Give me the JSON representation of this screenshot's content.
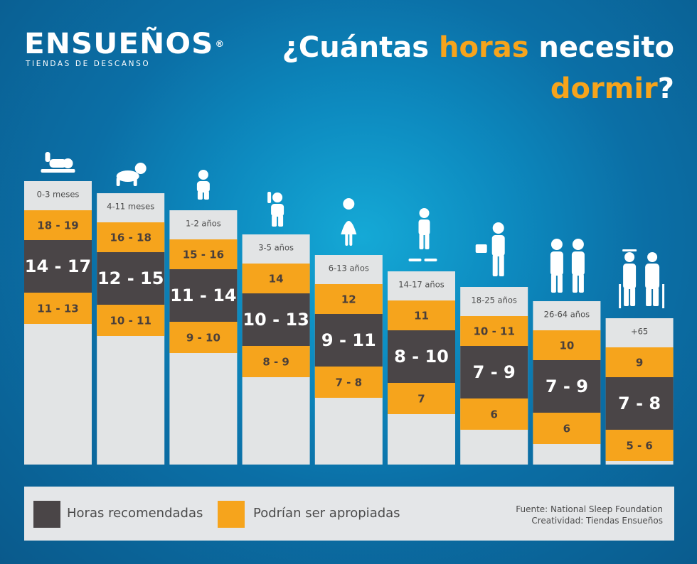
{
  "brand": {
    "name": "ENSUEÑOS",
    "registered": "®",
    "tagline": "TIENDAS DE DESCANSO"
  },
  "title": {
    "part1": "¿Cuántas ",
    "part2": "horas",
    "part3": " necesito",
    "part4": "dormir",
    "part5": "?"
  },
  "colors": {
    "recommended": "#4a4547",
    "appropriate": "#f6a41c",
    "bar": "#e2e4e5",
    "accent": "#f6a41c"
  },
  "chart_data": {
    "type": "bar",
    "categories": [
      "0-3 meses",
      "4-11 meses",
      "1-2 años",
      "3-5 años",
      "6-13 años",
      "14-17 años",
      "18-25 años",
      "26-64 años",
      "+65"
    ],
    "series": [
      {
        "name": "Podrían ser apropiadas",
        "values": [
          "18 - 19",
          "16 - 18",
          "15 - 16",
          "14",
          "12",
          "11",
          "10 - 11",
          "10",
          "9"
        ]
      },
      {
        "name": "Horas recomendadas",
        "values": [
          "14 - 17",
          "12 - 15",
          "11 - 14",
          "10 - 13",
          "9 - 11",
          "8 - 10",
          "7 - 9",
          "7 - 9",
          "7 - 8"
        ]
      },
      {
        "name": "Podrían ser apropiadas",
        "values": [
          "11 - 13",
          "10 - 11",
          "9 - 10",
          "8 - 9",
          "7 - 8",
          "7",
          "6",
          "6",
          "5 - 6"
        ]
      }
    ],
    "icons": [
      "baby-icon",
      "crawling-baby-icon",
      "toddler-icon",
      "child-icon",
      "girl-icon",
      "teen-skater-icon",
      "adult-briefcase-icon",
      "adult-couple-icon",
      "elderly-couple-icon"
    ]
  },
  "legend": {
    "recommended_label": "Horas recomendadas",
    "appropriate_label": "Podrían ser apropiadas"
  },
  "source": {
    "line1": "Fuente: National Sleep Foundation",
    "line2": "Creatividad: Tiendas Ensueños"
  }
}
